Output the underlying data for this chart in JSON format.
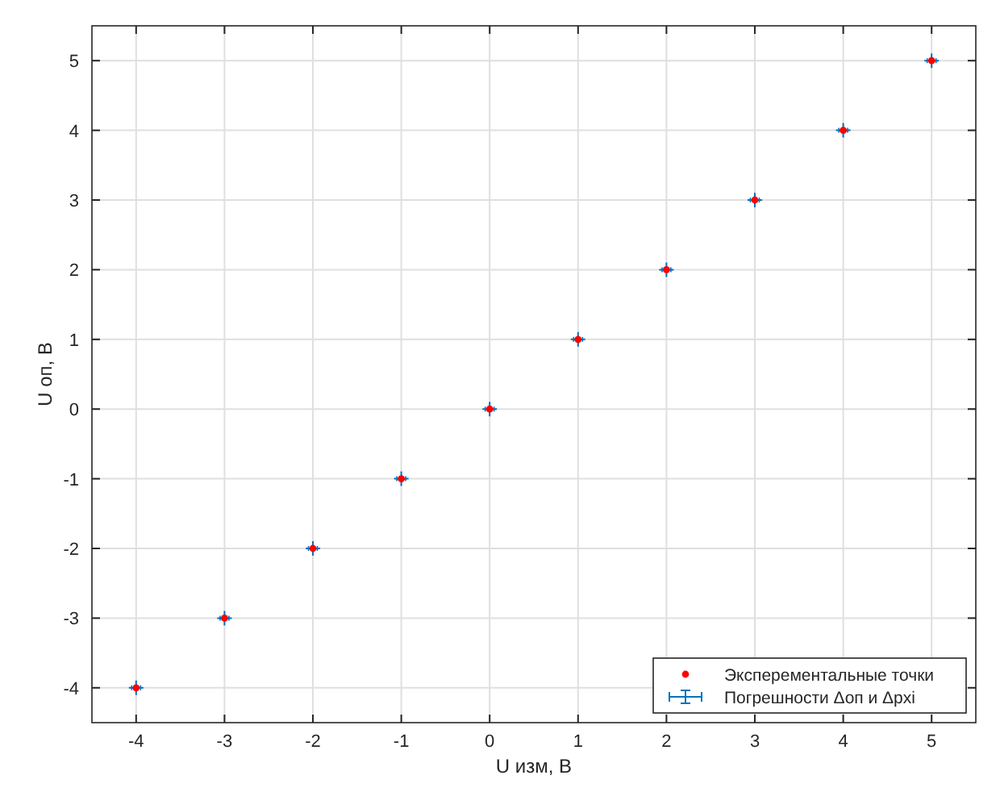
{
  "chart_data": {
    "type": "scatter",
    "xlabel": "U изм, В",
    "ylabel": "U оп, В",
    "x": [
      -4,
      -3,
      -2,
      -1,
      0,
      1,
      2,
      3,
      4,
      5
    ],
    "series": [
      {
        "name": "Эксперементальные точки",
        "color": "#ff0000",
        "marker": "circle",
        "values": [
          -4,
          -3,
          -2,
          -1,
          0,
          1,
          2,
          3,
          4,
          5
        ]
      },
      {
        "name": "Погрешности Δоп и Δpxi",
        "color": "#0072bd",
        "marker": "cross",
        "values": [
          -4,
          -3,
          -2,
          -1,
          0,
          1,
          2,
          3,
          4,
          5
        ],
        "errors": [
          0.02,
          0.02,
          0.02,
          0.02,
          0.02,
          0.02,
          0.02,
          0.02,
          0.02,
          0.02
        ],
        "xerrors": [
          0.05,
          0.05,
          0.05,
          0.05,
          0.05,
          0.05,
          0.05,
          0.05,
          0.05,
          0.05
        ]
      }
    ],
    "xlim": [
      -4.5,
      5.5
    ],
    "ylim": [
      -4.5,
      5.5
    ],
    "xticks": [
      -4,
      -3,
      -2,
      -1,
      0,
      1,
      2,
      3,
      4,
      5
    ],
    "yticks": [
      -4,
      -3,
      -2,
      -1,
      0,
      1,
      2,
      3,
      4,
      5
    ],
    "grid": true,
    "legend": "bottom right"
  }
}
